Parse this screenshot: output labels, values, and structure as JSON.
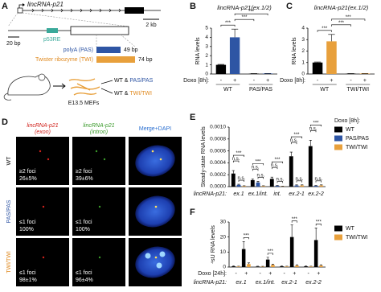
{
  "panel_a": {
    "letter": "A",
    "gene": "lincRNA-p21",
    "scale_small": "20 bp",
    "scale_large": "2 kb",
    "element": "p53RE",
    "inserts": [
      {
        "name": "polyA (PAS)",
        "size": "49 bp"
      },
      {
        "name": "Twister ribozyme (TWI)",
        "size": "74 bp"
      }
    ],
    "cells": "E13.5 MEFs",
    "lines": [
      [
        "WT &",
        "PAS/PAS"
      ],
      [
        "WT &",
        "TWI/TWI"
      ]
    ]
  },
  "panel_d": {
    "letter": "D",
    "columns": [
      {
        "name": "lincRNA-p21",
        "detail": "(exon)"
      },
      {
        "name": "lincRNA-p21",
        "detail": "(intron)"
      },
      {
        "name": "Merge+DAPI"
      }
    ],
    "rows": [
      {
        "name": "WT",
        "cells": [
          [
            "≥2 foci",
            "26±5%"
          ],
          [
            "≥2 foci",
            "39±6%"
          ]
        ]
      },
      {
        "name": "PAS/PAS",
        "cells": [
          [
            "≤1 foci",
            "100%"
          ],
          [
            "≤1 foci",
            "100%"
          ]
        ]
      },
      {
        "name": "TWI/TWI",
        "cells": [
          [
            "≤1 foci",
            "98±1%"
          ],
          [
            "≤1 foci",
            "96±4%"
          ]
        ]
      }
    ]
  },
  "chart_data": [
    {
      "type": "bar",
      "panel": "B",
      "title": "lincRNA-p21(ex.1/2)",
      "y_label": "RNA levels",
      "x_labels": [
        "Doxo [8h]:"
      ],
      "categories": [
        "WT",
        "PAS/PAS"
      ],
      "conditions": [
        "-",
        "+"
      ],
      "condition_colors": [
        "#000000",
        "#2e55a4"
      ],
      "series": [
        {
          "values": [
            [
              1,
              4.0
            ],
            [
              0.04,
              0.05
            ]
          ],
          "errors": [
            [
              0.05,
              0.9
            ],
            [
              0.01,
              0.01
            ]
          ]
        }
      ],
      "ylim": [
        0,
        5
      ],
      "yticks": [
        0,
        1,
        2,
        3,
        4,
        5
      ],
      "significance": [
        "***",
        "***",
        "***"
      ]
    },
    {
      "type": "bar",
      "panel": "C",
      "title": "lincRNA-p21(ex.1/2)",
      "y_label": "RNA levels",
      "x_labels": [
        "Doxo [8h]:"
      ],
      "categories": [
        "WT",
        "TWI/TWI"
      ],
      "conditions": [
        "-",
        "+"
      ],
      "condition_colors": [
        "#000000",
        "#e8a03c"
      ],
      "series": [
        {
          "values": [
            [
              1,
              2.85
            ],
            [
              0.03,
              0.04
            ]
          ],
          "errors": [
            [
              0.05,
              0.6
            ],
            [
              0.01,
              0.01
            ]
          ]
        }
      ],
      "ylim": [
        0,
        4
      ],
      "yticks": [
        0,
        1,
        2,
        3,
        4
      ],
      "significance": [
        "***",
        "***",
        "***"
      ]
    },
    {
      "type": "bar",
      "panel": "E",
      "y_label": "Steady-state RNA levels",
      "x_labels": [
        "lincRNA-p21:"
      ],
      "legend_title": "Doxo [8h]:",
      "categories": [
        "ex.1",
        "ex.1/int.",
        "int.",
        "ex.2-1",
        "ex.2-2"
      ],
      "series": [
        {
          "name": "WT",
          "color": "#000000",
          "values": [
            0.00022,
            0.00011,
            0.00013,
            0.00051,
            0.00068
          ],
          "errors": [
            5e-05,
            2e-05,
            3e-05,
            7e-05,
            0.0001
          ]
        },
        {
          "name": "PAS/PAS",
          "color": "#2e55a4",
          "values": [
            3e-05,
            7e-05,
            1.5e-05,
            2e-05,
            1.5e-05
          ],
          "errors": [
            1e-05,
            2e-05,
            5e-06,
            1e-05,
            5e-06
          ]
        },
        {
          "name": "TWI/TWI",
          "color": "#e8a03c",
          "values": [
            1e-05,
            1e-05,
            5e-06,
            2e-05,
            2e-05
          ],
          "errors": [
            5e-06,
            5e-06,
            3e-06,
            1e-05,
            1e-05
          ]
        }
      ],
      "ylim": [
        0,
        0.001
      ],
      "yticks": [
        {
          "value": 0,
          "label": "0.0000"
        },
        {
          "value": 0.0002,
          "label": "0.0002"
        },
        {
          "value": 0.0004,
          "label": "0.0004"
        },
        {
          "value": 0.0006,
          "label": "0.0006"
        },
        {
          "value": 0.0008,
          "label": "0.0008"
        },
        {
          "value": 0.001,
          "label": "0.0010"
        }
      ],
      "significance": [
        [
          "***",
          "n.s.",
          "n.s."
        ],
        [
          "***",
          "n.s.",
          "n.s."
        ],
        [
          "***",
          "n.s.",
          "n.s."
        ],
        [
          "***",
          "n.s.",
          "n.s."
        ],
        [
          "***",
          "n.s.",
          "n.s."
        ]
      ]
    },
    {
      "type": "bar",
      "panel": "F",
      "y_label": "⁴sU RNA levels",
      "x_labels": [
        "Doxo [24h]:",
        "lincRNA-p21:"
      ],
      "categories": [
        "ex.1",
        "ex.1/int.",
        "ex.2-1",
        "ex.2-2"
      ],
      "conditions": [
        "-",
        "+"
      ],
      "series": [
        {
          "name": "WT",
          "color": "#000000",
          "values": [
            [
              0.5,
              12
            ],
            [
              0.4,
              5
            ],
            [
              0.5,
              20
            ],
            [
              0.5,
              18
            ]
          ],
          "errors": [
            [
              0.3,
              5
            ],
            [
              0.2,
              1.5
            ],
            [
              0.3,
              8
            ],
            [
              0.3,
              8
            ]
          ]
        },
        {
          "name": "TWI/TWI",
          "color": "#e8a03c",
          "values": [
            [
              0.4,
              2
            ],
            [
              0.3,
              1.5
            ],
            [
              0.4,
              1
            ],
            [
              0.4,
              1
            ]
          ],
          "errors": [
            [
              0.2,
              0.8
            ],
            [
              0.2,
              0.5
            ],
            [
              0.2,
              0.5
            ],
            [
              0.2,
              0.5
            ]
          ]
        }
      ],
      "ylim": [
        0,
        30
      ],
      "yticks": [
        0,
        10,
        20,
        30
      ],
      "significance": [
        [
          "***"
        ],
        [
          "***"
        ],
        [
          "***"
        ],
        [
          "***"
        ]
      ]
    }
  ]
}
